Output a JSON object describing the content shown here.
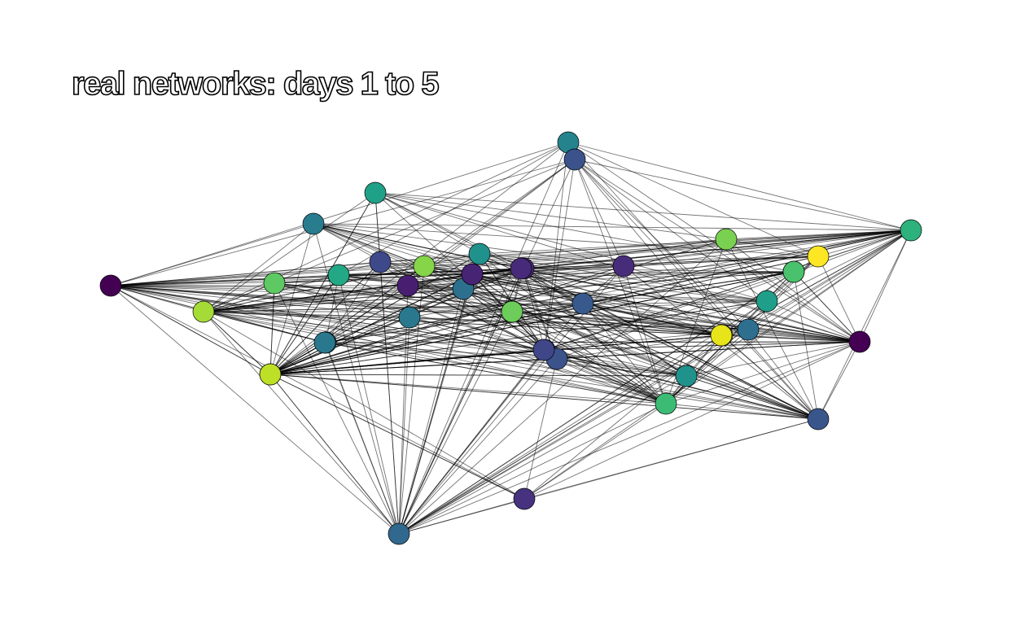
{
  "figure": {
    "title": "real networks: days 1 to 5"
  },
  "chart_data": {
    "type": "network",
    "title": "real networks: days 1 to 5",
    "colormap": "viridis",
    "hubs": [
      2,
      3,
      8,
      9,
      11,
      14,
      15,
      24,
      38
    ],
    "nodes": [
      {
        "id": 0,
        "color": "#25838e"
      },
      {
        "id": 1,
        "color": "#3b528b"
      },
      {
        "id": 2,
        "color": "#440154"
      },
      {
        "id": 3,
        "color": "#31688e"
      },
      {
        "id": 4,
        "color": "#46327e"
      },
      {
        "id": 5,
        "color": "#7ad151"
      },
      {
        "id": 6,
        "color": "#21918c"
      },
      {
        "id": 7,
        "color": "#1fa188"
      },
      {
        "id": 8,
        "color": "#a5db36"
      },
      {
        "id": 9,
        "color": "#2db27d"
      },
      {
        "id": 10,
        "color": "#297b8e"
      },
      {
        "id": 11,
        "color": "#3cbb75"
      },
      {
        "id": 12,
        "color": "#482878"
      },
      {
        "id": 13,
        "color": "#2d708e"
      },
      {
        "id": 14,
        "color": "#d2e21b"
      },
      {
        "id": 15,
        "color": "#440154"
      },
      {
        "id": 16,
        "color": "#fde725"
      },
      {
        "id": 17,
        "color": "#22a884"
      },
      {
        "id": 18,
        "color": "#3e4989"
      },
      {
        "id": 19,
        "color": "#1f9e89"
      },
      {
        "id": 20,
        "color": "#6ccd5a"
      },
      {
        "id": 21,
        "color": "#2a788e"
      },
      {
        "id": 22,
        "color": "#26818e"
      },
      {
        "id": 23,
        "color": "#3b528b"
      },
      {
        "id": 24,
        "color": "#39568c"
      },
      {
        "id": 25,
        "color": "#481f70"
      },
      {
        "id": 26,
        "color": "#472c7a"
      },
      {
        "id": 27,
        "color": "#440154"
      },
      {
        "id": 28,
        "color": "#86d549"
      },
      {
        "id": 29,
        "color": "#38598c"
      },
      {
        "id": 30,
        "color": "#2e6e8e"
      },
      {
        "id": 31,
        "color": "#22a884"
      },
      {
        "id": 32,
        "color": "#20928c"
      },
      {
        "id": 33,
        "color": "#3b528b"
      },
      {
        "id": 34,
        "color": "#472a7a"
      },
      {
        "id": 35,
        "color": "#9bd93c"
      },
      {
        "id": 36,
        "color": "#5ec962"
      },
      {
        "id": 37,
        "color": "#2a788e"
      },
      {
        "id": 38,
        "color": "#bddf26"
      },
      {
        "id": 39,
        "color": "#e7e419"
      },
      {
        "id": 40,
        "color": "#3f4788"
      },
      {
        "id": 41,
        "color": "#4ac16d"
      },
      {
        "id": 42,
        "color": "#482475"
      }
    ]
  }
}
